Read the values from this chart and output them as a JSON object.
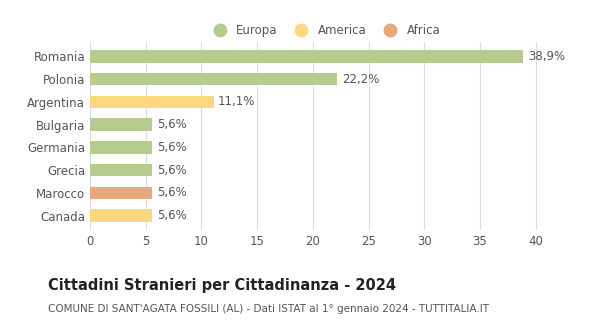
{
  "categories": [
    "Romania",
    "Polonia",
    "Argentina",
    "Bulgaria",
    "Germania",
    "Grecia",
    "Marocco",
    "Canada"
  ],
  "values": [
    38.9,
    22.2,
    11.1,
    5.6,
    5.6,
    5.6,
    5.6,
    5.6
  ],
  "labels": [
    "38,9%",
    "22,2%",
    "11,1%",
    "5,6%",
    "5,6%",
    "5,6%",
    "5,6%",
    "5,6%"
  ],
  "colors": [
    "#b5cc8e",
    "#b5cc8e",
    "#fdd87e",
    "#b5cc8e",
    "#b5cc8e",
    "#b5cc8e",
    "#e8a87c",
    "#fdd87e"
  ],
  "legend_labels": [
    "Europa",
    "America",
    "Africa"
  ],
  "legend_colors": [
    "#b5cc8e",
    "#fdd87e",
    "#e8a87c"
  ],
  "title": "Cittadini Stranieri per Cittadinanza - 2024",
  "subtitle": "COMUNE DI SANT'AGATA FOSSILI (AL) - Dati ISTAT al 1° gennaio 2024 - TUTTITALIA.IT",
  "xlim": [
    0,
    42
  ],
  "xticks": [
    0,
    5,
    10,
    15,
    20,
    25,
    30,
    35,
    40
  ],
  "background_color": "#ffffff",
  "grid_color": "#dddddd",
  "bar_height": 0.55,
  "label_fontsize": 8.5,
  "tick_fontsize": 8.5,
  "title_fontsize": 10.5,
  "subtitle_fontsize": 7.5
}
